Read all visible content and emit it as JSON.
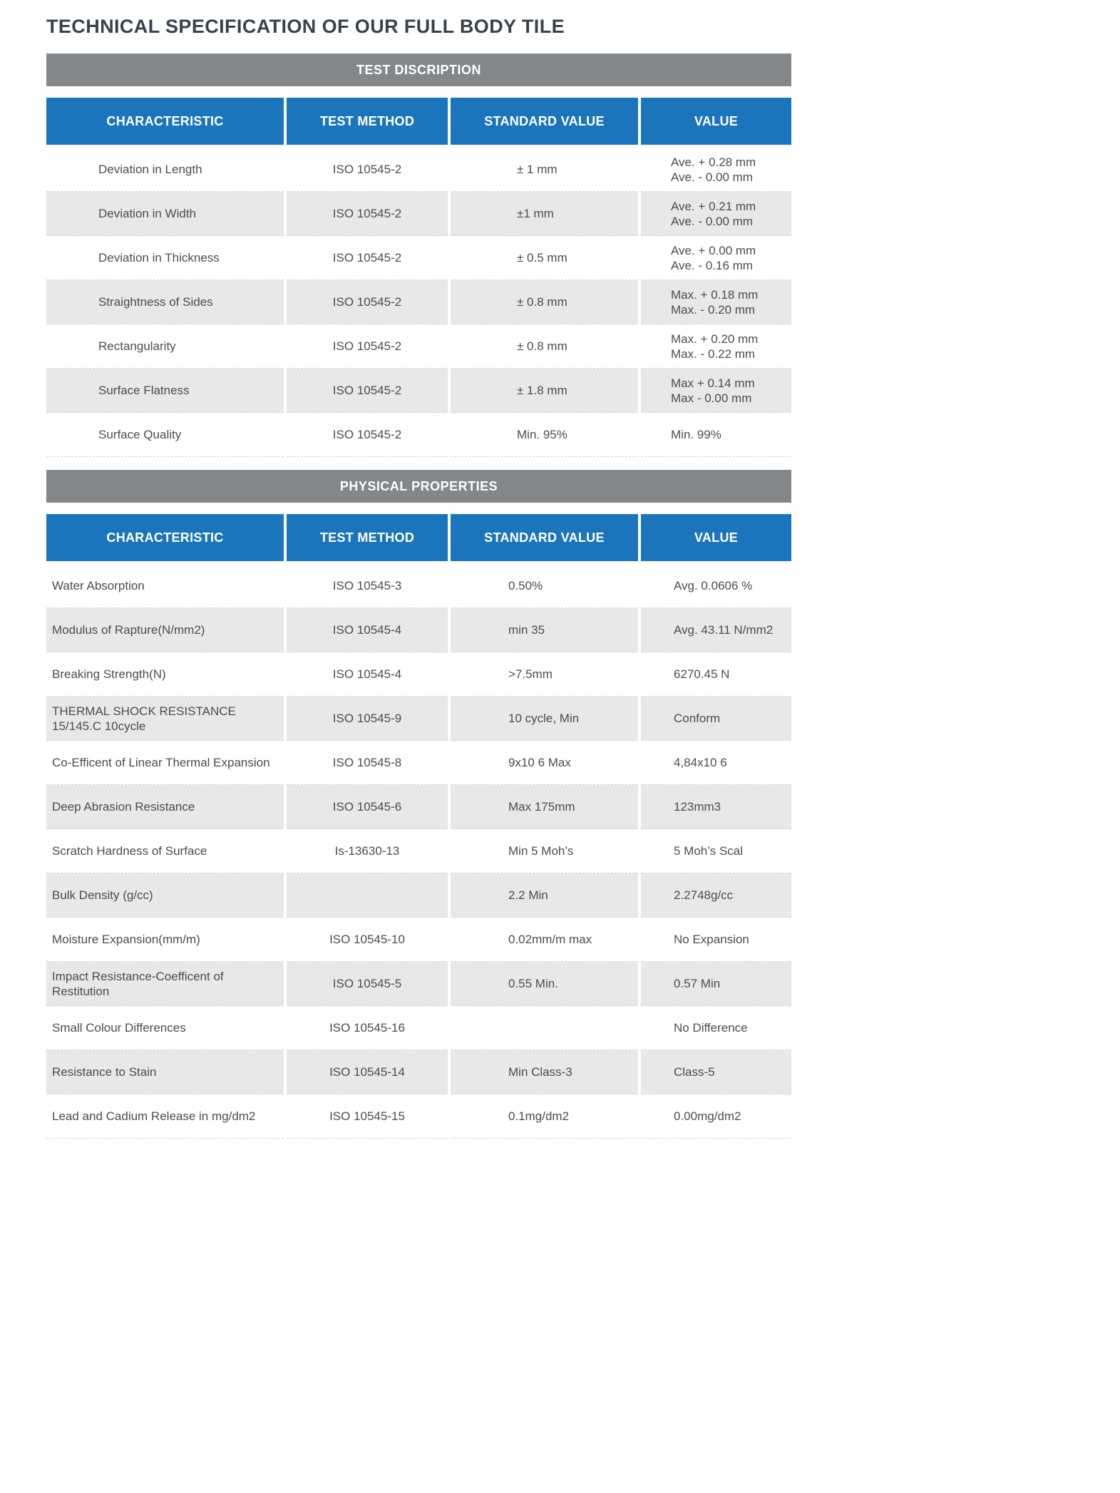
{
  "page": {
    "title": "TECHNICAL SPECIFICATION OF OUR FULL BODY TILE"
  },
  "colors": {
    "header_blue": "#1b75bc",
    "section_gray": "#848789",
    "row_alt": "#e8e8e9"
  },
  "tables": [
    {
      "section_title": "TEST DISCRIPTION",
      "columns": [
        "CHARACTERISTIC",
        "TEST METHOD",
        "STANDARD VALUE",
        "VALUE"
      ],
      "rows": [
        {
          "characteristic": [
            "Deviation in Length"
          ],
          "method": [
            "ISO 10545-2"
          ],
          "standard": [
            "± 1 mm"
          ],
          "value": [
            "Ave. + 0.28 mm",
            "Ave. - 0.00 mm"
          ]
        },
        {
          "characteristic": [
            "Deviation in Width"
          ],
          "method": [
            "ISO 10545-2"
          ],
          "standard": [
            "±1 mm"
          ],
          "value": [
            "Ave. + 0.21 mm",
            "Ave. - 0.00 mm"
          ]
        },
        {
          "characteristic": [
            "Deviation in Thickness"
          ],
          "method": [
            "ISO 10545-2"
          ],
          "standard": [
            "± 0.5 mm"
          ],
          "value": [
            "Ave. + 0.00 mm",
            "Ave. - 0.16 mm"
          ]
        },
        {
          "characteristic": [
            "Straightness of Sides"
          ],
          "method": [
            "ISO 10545-2"
          ],
          "standard": [
            "± 0.8 mm"
          ],
          "value": [
            "Max. + 0.18 mm",
            "Max. - 0.20 mm"
          ]
        },
        {
          "characteristic": [
            "Rectangularity"
          ],
          "method": [
            "ISO 10545-2"
          ],
          "standard": [
            "± 0.8 mm"
          ],
          "value": [
            "Max. + 0.20 mm",
            "Max. - 0.22 mm"
          ]
        },
        {
          "characteristic": [
            "Surface Flatness"
          ],
          "method": [
            "ISO 10545-2"
          ],
          "standard": [
            "± 1.8 mm"
          ],
          "value": [
            "Max + 0.14 mm",
            "Max - 0.00 mm"
          ]
        },
        {
          "characteristic": [
            "Surface Quality"
          ],
          "method": [
            "ISO 10545-2"
          ],
          "standard": [
            "Min. 95%"
          ],
          "value": [
            "Min. 99%"
          ]
        }
      ]
    },
    {
      "section_title": "PHYSICAL PROPERTIES",
      "columns": [
        "CHARACTERISTIC",
        "TEST METHOD",
        "STANDARD VALUE",
        "VALUE"
      ],
      "rows": [
        {
          "characteristic": [
            "Water Absorption"
          ],
          "method": [
            "ISO 10545-3"
          ],
          "standard": [
            "0.50%"
          ],
          "value": [
            "Avg. 0.0606 %"
          ]
        },
        {
          "characteristic": [
            "Modulus of Rapture(N/mm2)"
          ],
          "method": [
            "ISO 10545-4"
          ],
          "standard": [
            "min 35"
          ],
          "value": [
            "Avg. 43.11 N/mm2"
          ]
        },
        {
          "characteristic": [
            "Breaking Strength(N)"
          ],
          "method": [
            "ISO 10545-4"
          ],
          "standard": [
            ">7.5mm"
          ],
          "value": [
            "6270.45 N"
          ]
        },
        {
          "characteristic": [
            "THERMAL SHOCK RESISTANCE",
            "15/145.C 10cycle"
          ],
          "method": [
            "ISO 10545-9"
          ],
          "standard": [
            "10 cycle, Min"
          ],
          "value": [
            "Conform"
          ]
        },
        {
          "characteristic": [
            "Co-Efficent of Linear Thermal Expansion"
          ],
          "method": [
            "ISO 10545-8"
          ],
          "standard": [
            "9x10 6 Max"
          ],
          "value": [
            "4,84x10 6"
          ]
        },
        {
          "characteristic": [
            "Deep Abrasion Resistance"
          ],
          "method": [
            "ISO 10545-6"
          ],
          "standard": [
            "Max 175mm"
          ],
          "value": [
            "123mm3"
          ]
        },
        {
          "characteristic": [
            "Scratch Hardness of Surface"
          ],
          "method": [
            "Is-13630-13"
          ],
          "standard": [
            "Min 5 Moh’s"
          ],
          "value": [
            "5 Moh’s Scal"
          ]
        },
        {
          "characteristic": [
            "Bulk Density (g/cc)"
          ],
          "method": [],
          "standard": [
            "2.2 Min"
          ],
          "value": [
            "2.2748g/cc"
          ]
        },
        {
          "characteristic": [
            "Moisture Expansion(mm/m)"
          ],
          "method": [
            "ISO 10545-10"
          ],
          "standard": [
            "0.02mm/m max"
          ],
          "value": [
            "No Expansion"
          ]
        },
        {
          "characteristic": [
            "Impact Resistance-Coefficent of Restitution"
          ],
          "method": [
            "ISO 10545-5"
          ],
          "standard": [
            "0.55 Min."
          ],
          "value": [
            "0.57 Min"
          ]
        },
        {
          "characteristic": [
            "Small Colour Differences"
          ],
          "method": [
            "ISO 10545-16"
          ],
          "standard": [],
          "value": [
            "No Difference"
          ]
        },
        {
          "characteristic": [
            "Resistance to Stain"
          ],
          "method": [
            "ISO 10545-14"
          ],
          "standard": [
            "Min Class-3"
          ],
          "value": [
            "Class-5"
          ]
        },
        {
          "characteristic": [
            "Lead and Cadium Release in mg/dm2"
          ],
          "method": [
            "ISO 10545-15"
          ],
          "standard": [
            "0.1mg/dm2"
          ],
          "value": [
            "0.00mg/dm2"
          ]
        }
      ]
    }
  ]
}
